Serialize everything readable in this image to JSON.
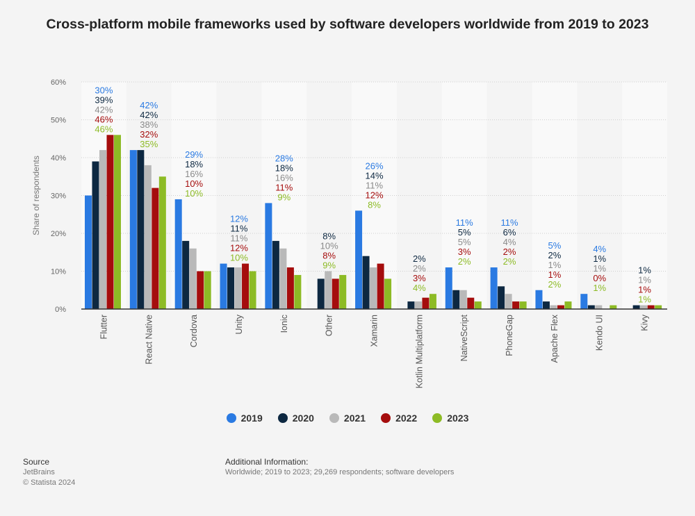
{
  "chart_data": {
    "type": "bar",
    "title": "Cross-platform mobile frameworks used by software developers worldwide from 2019 to 2023",
    "ylabel": "Share of respondents",
    "xlabel": "",
    "ylim": [
      0,
      60
    ],
    "yticks": [
      "0%",
      "10%",
      "20%",
      "30%",
      "40%",
      "50%",
      "60%"
    ],
    "grid": true,
    "legend_position": "bottom",
    "categories": [
      "Flutter",
      "React Native",
      "Cordova",
      "Unity",
      "Ionic",
      "Other",
      "Xamarin",
      "Kotlin Multiplatform",
      "NativeScript",
      "PhoneGap",
      "Apache Flex",
      "Kendo UI",
      "Kivy"
    ],
    "series": [
      {
        "name": "2019",
        "color": "#2a7ae2",
        "values": [
          30,
          42,
          29,
          12,
          28,
          null,
          26,
          null,
          11,
          11,
          5,
          4,
          null
        ]
      },
      {
        "name": "2020",
        "color": "#0d2841",
        "values": [
          39,
          42,
          18,
          11,
          18,
          8,
          14,
          2,
          5,
          6,
          2,
          1,
          1
        ]
      },
      {
        "name": "2021",
        "color": "#b9b9b9",
        "values": [
          42,
          38,
          16,
          11,
          16,
          10,
          11,
          2,
          5,
          4,
          1,
          1,
          1
        ]
      },
      {
        "name": "2022",
        "color": "#a50d0d",
        "values": [
          46,
          32,
          10,
          12,
          11,
          8,
          12,
          3,
          3,
          2,
          1,
          0,
          1
        ]
      },
      {
        "name": "2023",
        "color": "#8dbb25",
        "values": [
          46,
          35,
          10,
          10,
          9,
          9,
          8,
          4,
          2,
          2,
          2,
          1,
          1
        ]
      }
    ]
  },
  "footer": {
    "source_label": "Source",
    "source": "JetBrains",
    "copyright": "© Statista 2024",
    "additional_label": "Additional Information:",
    "additional": "Worldwide; 2019 to 2023; 29,269 respondents; software developers"
  }
}
